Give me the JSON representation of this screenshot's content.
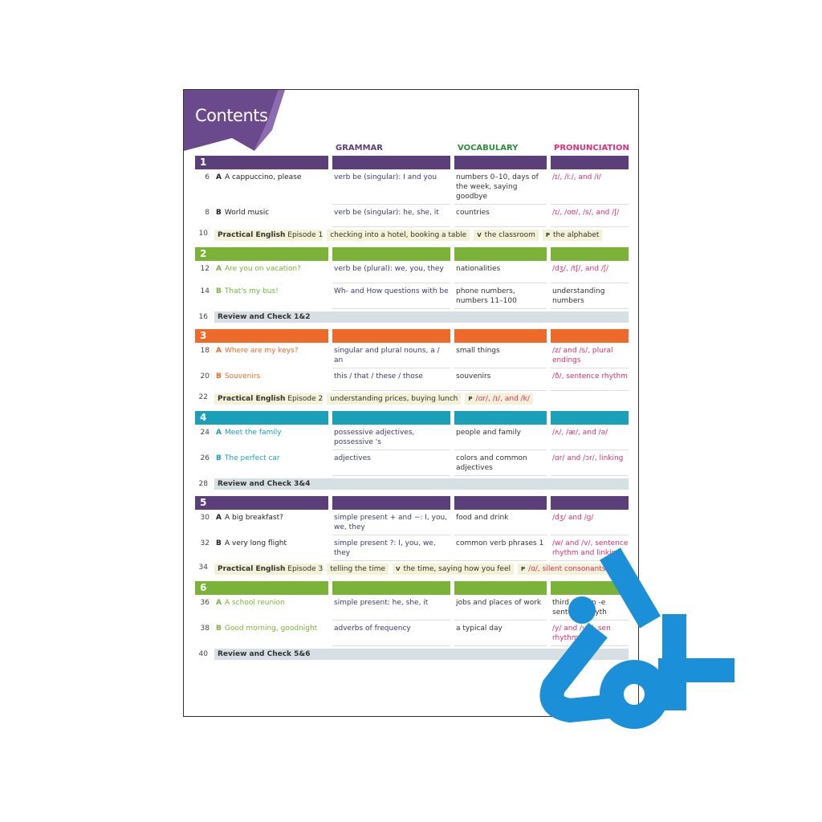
{
  "header": {
    "title": "Contents",
    "columns": [
      "GRAMMAR",
      "VOCABULARY",
      "PRONUNCIATION"
    ]
  },
  "units": [
    {
      "number": "1",
      "color": "#5b3f7a",
      "title_color": "#222222",
      "rows": [
        {
          "kind": "lesson",
          "page": "6",
          "letter": "A",
          "title": "A cappuccino, please",
          "grammar": "verb be (singular): I and you",
          "vocabulary": "numbers 0–10, days of the week, saying goodbye",
          "pronunciation": "/ɪ/, /iː/, and /i/"
        },
        {
          "kind": "lesson",
          "page": "8",
          "letter": "B",
          "title": "World music",
          "grammar": "verb be (singular): he, she, it",
          "vocabulary": "countries",
          "pronunciation": "/ɪ/, /oʊ/, /s/, and /ʃ/"
        },
        {
          "kind": "practical",
          "page": "10",
          "title": "Practical English",
          "episode": "Episode 1",
          "grammar": "checking into a hotel, booking a table",
          "extras": [
            {
              "label": "V",
              "text": "the classroom"
            },
            {
              "label": "P",
              "text": "the alphabet"
            }
          ]
        }
      ]
    },
    {
      "number": "2",
      "color": "#7ab337",
      "title_color": "#7ab337",
      "rows": [
        {
          "kind": "lesson",
          "page": "12",
          "letter": "A",
          "title": "Are you on vacation?",
          "grammar": "verb be (plural): we, you, they",
          "vocabulary": "nationalities",
          "pronunciation": "/dʒ/, /tʃ/, and /ʃ/"
        },
        {
          "kind": "lesson",
          "page": "14",
          "letter": "B",
          "title": "That's my bus!",
          "grammar": "Wh- and How questions with be",
          "vocabulary": "phone numbers, numbers 11–100",
          "pronunciation": "understanding numbers"
        },
        {
          "kind": "review",
          "page": "16",
          "title": "Review and Check 1&2"
        }
      ]
    },
    {
      "number": "3",
      "color": "#ee6a2a",
      "title_color": "#ee6a2a",
      "rows": [
        {
          "kind": "lesson",
          "page": "18",
          "letter": "A",
          "title": "Where are my keys?",
          "grammar": "singular and plural nouns, a / an",
          "vocabulary": "small things",
          "pronunciation": "/z/ and /s/, plural endings"
        },
        {
          "kind": "lesson",
          "page": "20",
          "letter": "B",
          "title": "Souvenirs",
          "grammar": "this / that / these / those",
          "vocabulary": "souvenirs",
          "pronunciation": "/ð/, sentence rhythm"
        },
        {
          "kind": "practical",
          "page": "22",
          "title": "Practical English",
          "episode": "Episode 2",
          "grammar": "understanding prices, buying lunch",
          "extras": [
            {
              "label": "P",
              "text": "/ɑr/, /ɪ/, and /k/"
            }
          ]
        }
      ]
    },
    {
      "number": "4",
      "color": "#1aa0b8",
      "title_color": "#1aa0b8",
      "rows": [
        {
          "kind": "lesson",
          "page": "24",
          "letter": "A",
          "title": "Meet the family",
          "grammar": "possessive adjectives, possessive 's",
          "vocabulary": "people and family",
          "pronunciation": "/ʌ/, /æ/, and /ə/"
        },
        {
          "kind": "lesson",
          "page": "26",
          "letter": "B",
          "title": "The perfect car",
          "grammar": "adjectives",
          "vocabulary": "colors and common adjectives",
          "pronunciation": "/ɑr/ and /ɔr/, linking"
        },
        {
          "kind": "review",
          "page": "28",
          "title": "Review and Check 3&4"
        }
      ]
    },
    {
      "number": "5",
      "color": "#5b3f7a",
      "title_color": "#222222",
      "rows": [
        {
          "kind": "lesson",
          "page": "30",
          "letter": "A",
          "title": "A big breakfast?",
          "grammar": "simple present + and −: I, you, we, they",
          "vocabulary": "food and drink",
          "pronunciation": "/dʒ/ and /g/"
        },
        {
          "kind": "lesson",
          "page": "32",
          "letter": "B",
          "title": "A very long flight",
          "grammar": "simple present ?: I, you, we, they",
          "vocabulary": "common verb phrases 1",
          "pronunciation": "/w/ and /v/, sentence rhythm and linking"
        },
        {
          "kind": "practical",
          "page": "34",
          "title": "Practical English",
          "episode": "Episode 3",
          "grammar": "telling the time",
          "extras": [
            {
              "label": "V",
              "text": "the time, saying how you feel"
            },
            {
              "label": "P",
              "text": "/ɑ/, silent consonants"
            }
          ]
        }
      ]
    },
    {
      "number": "6",
      "color": "#7ab337",
      "title_color": "#7ab337",
      "rows": [
        {
          "kind": "lesson",
          "page": "36",
          "letter": "A",
          "title": "A school reunion",
          "grammar": "simple present: he, she, it",
          "vocabulary": "jobs and places of work",
          "pronunciation": "third person -e sentence rhyth"
        },
        {
          "kind": "lesson",
          "page": "38",
          "letter": "B",
          "title": "Good morning, goodnight",
          "grammar": "adverbs of frequency",
          "vocabulary": "a typical day",
          "pronunciation": "/y/ and /yu/, sen rhythm"
        },
        {
          "kind": "review",
          "page": "40",
          "title": "Review and Check 5&6"
        }
      ]
    }
  ]
}
